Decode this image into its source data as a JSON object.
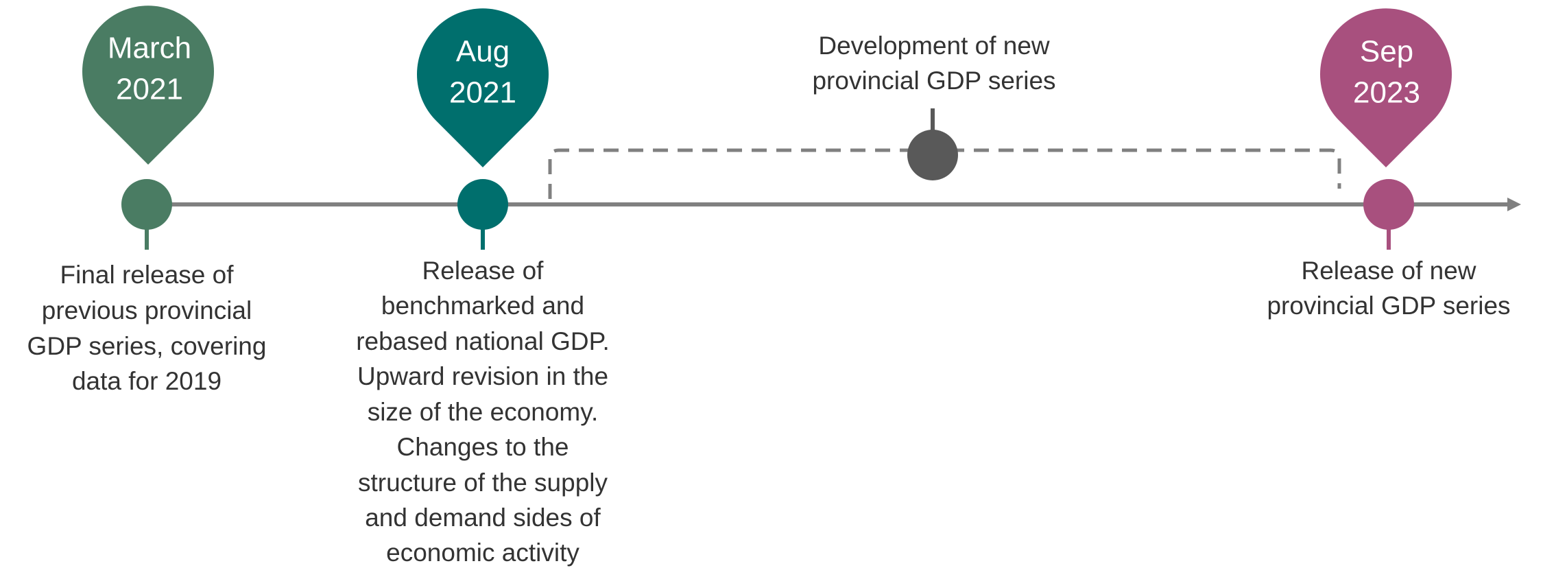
{
  "milestones": [
    {
      "date": [
        "March",
        "2021"
      ],
      "description": [
        "Final release of",
        "previous provincial",
        "GDP series, covering",
        "data for 2019"
      ]
    },
    {
      "date": [
        "Aug",
        "2021"
      ],
      "description": [
        "Release of",
        "benchmarked and",
        "rebased national GDP.",
        "Upward revision in the",
        "size of the economy.",
        "Changes to the",
        "structure of the supply",
        "and demand sides of",
        "economic activity"
      ]
    },
    {
      "date": [
        "Sep",
        "2023"
      ],
      "description": [
        "Release of new",
        "provincial GDP series"
      ]
    }
  ],
  "development": {
    "label": [
      "Development of new",
      "provincial GDP series"
    ]
  }
}
